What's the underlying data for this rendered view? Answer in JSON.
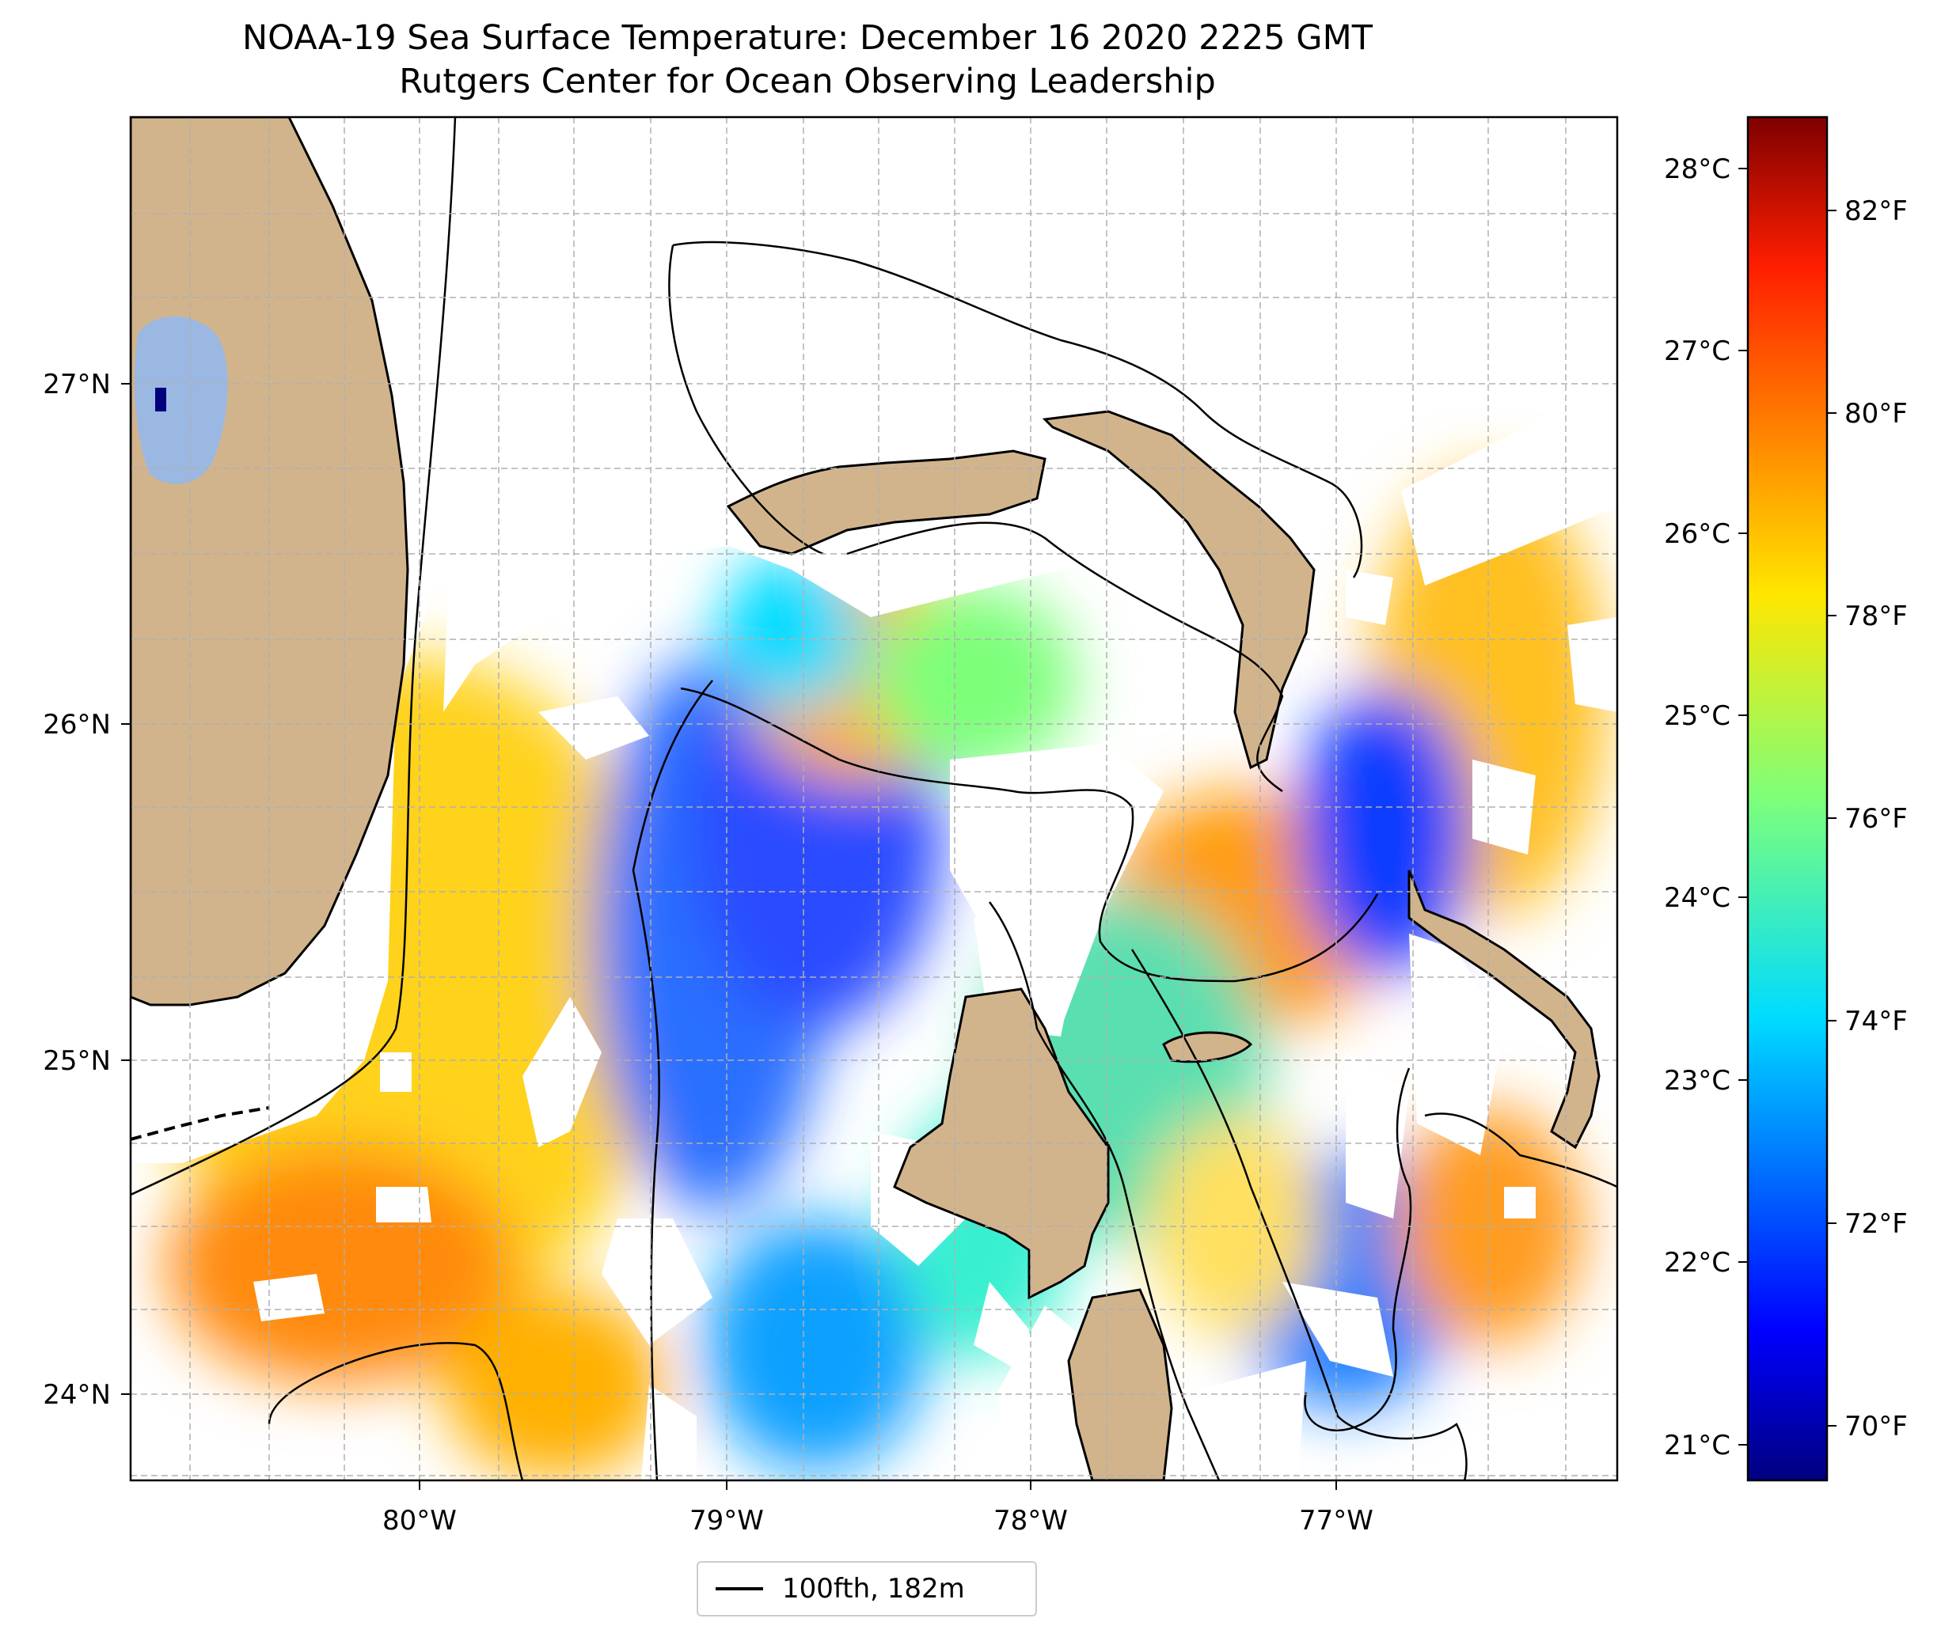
{
  "title": "NOAA-19 Sea Surface Temperature: December 16 2020 2225 GMT",
  "subtitle": "Rutgers Center for Ocean Observing Leadership",
  "map": {
    "lon_ticks": [
      "80°W",
      "79°W",
      "78°W",
      "77°W"
    ],
    "lat_ticks": [
      "27°N",
      "26°N",
      "25°N",
      "24°N"
    ],
    "extent": {
      "lon_min": -80.95,
      "lon_max": -76.1,
      "lat_min": 23.75,
      "lat_max": 27.8
    },
    "gridlines": true,
    "land_color": "#d2b48c",
    "lake_color": "#9bb8e3"
  },
  "colorbar": {
    "colormap": "jet",
    "celsius_ticks": [
      "28°C",
      "27°C",
      "26°C",
      "25°C",
      "24°C",
      "23°C",
      "22°C",
      "21°C"
    ],
    "fahrenheit_ticks": [
      "82°F",
      "80°F",
      "78°F",
      "76°F",
      "74°F",
      "72°F",
      "70°F"
    ],
    "f_range": [
      69.4,
      83.0
    ],
    "c_range": [
      20.8,
      28.3
    ]
  },
  "legend": {
    "label": "100fth, 182m"
  }
}
